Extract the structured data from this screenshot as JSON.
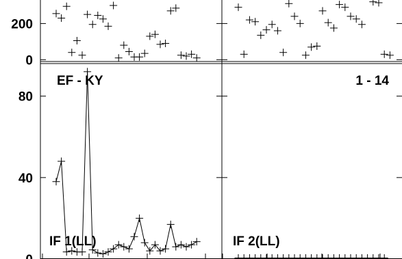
{
  "chart_data": {
    "type": "scatter",
    "panels": [
      {
        "id": "top-left",
        "type": "scatter",
        "ylim": [
          -10,
          330
        ],
        "y_ticks": [
          0,
          200
        ],
        "y_tick_labels": [
          "0",
          "200"
        ],
        "x": [
          1,
          2,
          3,
          4,
          5,
          6,
          7,
          8,
          9,
          10,
          11,
          12,
          13,
          14,
          15,
          16,
          17,
          18,
          19,
          20,
          21,
          22,
          23,
          24,
          25,
          26,
          27,
          28,
          29,
          30
        ],
        "values": [
          255,
          230,
          295,
          40,
          105,
          25,
          250,
          195,
          245,
          225,
          185,
          300,
          10,
          80,
          45,
          15,
          15,
          35,
          130,
          140,
          85,
          90,
          270,
          285,
          25,
          20,
          30,
          10,
          null,
          null
        ]
      },
      {
        "id": "top-right",
        "type": "scatter",
        "ylim": [
          -10,
          330
        ],
        "y_ticks": [
          0,
          200
        ],
        "y_tick_labels": [
          "0",
          "200"
        ],
        "x": [
          1,
          2,
          3,
          4,
          5,
          6,
          7,
          8,
          9,
          10,
          11,
          12,
          13,
          14,
          15,
          16,
          17,
          18,
          19,
          20,
          21,
          22,
          23,
          24,
          25,
          26,
          27,
          28,
          29,
          30
        ],
        "values": [
          290,
          30,
          220,
          210,
          135,
          165,
          195,
          160,
          40,
          310,
          240,
          200,
          25,
          70,
          75,
          270,
          205,
          175,
          305,
          290,
          240,
          225,
          195,
          null,
          320,
          315,
          30,
          25,
          null,
          null
        ]
      },
      {
        "id": "bottom-left",
        "type": "line",
        "label": "IF 1(LL)",
        "ylim": [
          0,
          96
        ],
        "y_ticks": [
          0,
          40,
          80
        ],
        "y_tick_labels": [
          "0",
          "40",
          "80"
        ],
        "x": [
          1,
          2,
          3,
          4,
          5,
          6,
          7,
          8,
          9,
          10,
          11,
          12,
          13,
          14,
          15,
          16,
          17,
          18,
          19,
          20,
          21,
          22,
          23,
          24,
          25,
          26,
          27,
          28,
          29,
          30
        ],
        "values": [
          38,
          48,
          3.5,
          4,
          3.5,
          3.5,
          92,
          4.5,
          3,
          2.5,
          3.5,
          5,
          7,
          6,
          5,
          11,
          20,
          8,
          4,
          7,
          4,
          5,
          17,
          6,
          7,
          6,
          7,
          8.5,
          null,
          null
        ]
      },
      {
        "id": "bottom-right",
        "type": "scatter",
        "label": "IF 2(LL)",
        "ylim": [
          0,
          96
        ],
        "y_ticks": [
          0,
          40,
          80
        ],
        "y_tick_labels": [
          "0",
          "40",
          "80"
        ],
        "x": [
          1,
          2,
          3,
          4,
          5,
          6,
          7,
          8,
          9,
          10,
          11,
          12,
          13,
          14,
          15,
          16,
          17,
          18,
          19,
          20,
          21,
          22,
          23,
          24,
          25,
          26,
          27,
          28,
          29,
          30
        ],
        "values": [
          0.5,
          0.5,
          0.5,
          0.5,
          0.5,
          0.5,
          0.5,
          0.5,
          0.5,
          0.5,
          0.5,
          0.5,
          0.5,
          0.5,
          0.5,
          0.5,
          0.5,
          0.5,
          0.5,
          0.5,
          0.5,
          0.5,
          0.5,
          0.5,
          0.5,
          0.5,
          0.5,
          null,
          null,
          null
        ]
      }
    ],
    "annotations": {
      "left": "EF - KY",
      "right": "1 - 14"
    }
  }
}
